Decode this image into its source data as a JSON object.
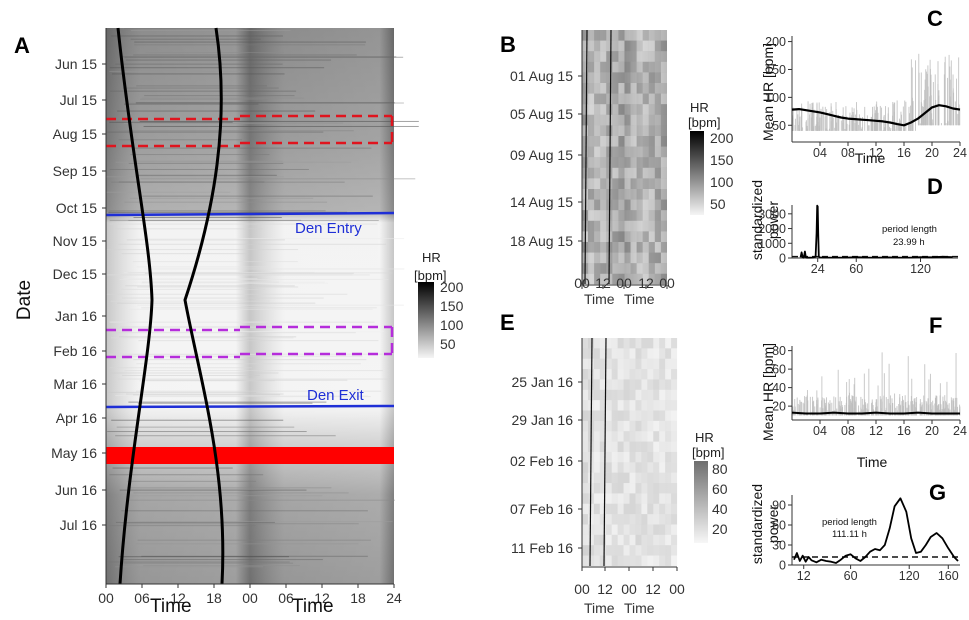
{
  "chart_data": [
    {
      "panel": "A",
      "type": "heatmap",
      "xlabel": "Time",
      "ylabel": "Date",
      "x_ticks": [
        "00",
        "06",
        "12",
        "18",
        "00",
        "06",
        "12",
        "18",
        "24"
      ],
      "y_ticks": [
        "Jun 15",
        "Jul 15",
        "Aug 15",
        "Sep 15",
        "Oct 15",
        "Nov 15",
        "Dec 15",
        "Jan 16",
        "Feb 16",
        "Mar 16",
        "Apr 16",
        "May 16",
        "Jun 16",
        "Jul 16"
      ],
      "legend": {
        "title_line1": "HR",
        "title_line2": "[bpm]",
        "ticks": [
          200,
          150,
          100,
          50
        ]
      },
      "annotations": {
        "den_entry": "Den Entry",
        "den_exit": "Den Exit"
      },
      "colors": {
        "den_line": "#1f2fd6",
        "summer_box": "#e0141e",
        "winter_box": "#b52ddb",
        "band": "#ff0000"
      }
    },
    {
      "panel": "B",
      "type": "heatmap",
      "xlabel_left": "Time",
      "xlabel_right": "Time",
      "x_ticks": [
        "00",
        "12",
        "00",
        "12",
        "00"
      ],
      "y_ticks": [
        "01 Aug 15",
        "05 Aug 15",
        "09 Aug 15",
        "14 Aug 15",
        "18 Aug 15"
      ],
      "legend": {
        "title_line1": "HR",
        "title_line2": "[bpm]",
        "ticks": [
          200,
          150,
          100,
          50
        ]
      }
    },
    {
      "panel": "C",
      "type": "line",
      "xlabel": "Time",
      "ylabel": "Mean HR [bpm]",
      "x_ticks": [
        "04",
        "08",
        "12",
        "16",
        "20",
        "24"
      ],
      "xlim": [
        0,
        24
      ],
      "ylim": [
        20,
        210
      ],
      "y_ticks": [
        50,
        100,
        150,
        200
      ],
      "x": [
        0,
        1,
        2,
        3,
        4,
        5,
        6,
        7,
        8,
        9,
        10,
        11,
        12,
        13,
        14,
        15,
        16,
        17,
        18,
        19,
        20,
        21,
        22,
        23,
        24
      ],
      "y": [
        78,
        79,
        77,
        75,
        73,
        70,
        67,
        64,
        62,
        61,
        60,
        59,
        58,
        57,
        55,
        52,
        50,
        55,
        62,
        72,
        82,
        86,
        84,
        80,
        78
      ]
    },
    {
      "panel": "D",
      "type": "line",
      "ylabel": "standardized power",
      "x_ticks": [
        24,
        60,
        120
      ],
      "xlim": [
        0,
        155
      ],
      "ylim": [
        0,
        3600
      ],
      "y_ticks": [
        0,
        1000,
        2000,
        3000
      ],
      "annotation": {
        "line1": "period length",
        "line2": "23.99 h"
      },
      "x": [
        8,
        9,
        10,
        11,
        12,
        13,
        14,
        15,
        16,
        20,
        22,
        23,
        23.5,
        24,
        24.5,
        25,
        26,
        30,
        40,
        50,
        60,
        70,
        80,
        90,
        100,
        110,
        120,
        130,
        140,
        150
      ],
      "y": [
        50,
        380,
        40,
        20,
        440,
        30,
        20,
        30,
        20,
        30,
        100,
        1700,
        3550,
        3500,
        1700,
        100,
        40,
        30,
        25,
        30,
        60,
        35,
        30,
        40,
        30,
        30,
        60,
        50,
        80,
        60
      ],
      "threshold": 100
    },
    {
      "panel": "E",
      "type": "heatmap",
      "xlabel_left": "Time",
      "xlabel_right": "Time",
      "x_ticks": [
        "00",
        "12",
        "00",
        "12",
        "00"
      ],
      "y_ticks": [
        "25 Jan 16",
        "29 Jan 16",
        "02 Feb 16",
        "07 Feb 16",
        "11 Feb 16"
      ],
      "legend": {
        "title_line1": "HR",
        "title_line2": "[bpm]",
        "ticks": [
          80,
          60,
          40,
          20
        ]
      }
    },
    {
      "panel": "F",
      "type": "line",
      "xlabel": "Time",
      "ylabel": "Mean HR [bpm]",
      "x_ticks": [
        "04",
        "08",
        "12",
        "16",
        "20",
        "24"
      ],
      "xlim": [
        0,
        24
      ],
      "ylim": [
        5,
        85
      ],
      "y_ticks": [
        20,
        40,
        60,
        80
      ],
      "x": [
        0,
        2,
        4,
        6,
        8,
        10,
        12,
        14,
        16,
        18,
        20,
        22,
        24
      ],
      "y": [
        13,
        12,
        12,
        13,
        12,
        12,
        13,
        12,
        12,
        13,
        12,
        12,
        12
      ]
    },
    {
      "panel": "G",
      "type": "line",
      "ylabel": "standardized power",
      "x_ticks": [
        12,
        60,
        120,
        160
      ],
      "xlim": [
        0,
        172
      ],
      "ylim": [
        0,
        105
      ],
      "y_ticks": [
        0,
        30,
        60,
        90
      ],
      "annotation": {
        "line1": "period length",
        "line2": "111.11 h"
      },
      "x": [
        2,
        5,
        8,
        11,
        14,
        17,
        20,
        25,
        30,
        35,
        40,
        45,
        50,
        55,
        60,
        65,
        70,
        75,
        80,
        85,
        90,
        95,
        100,
        105,
        111,
        117,
        122,
        127,
        132,
        137,
        142,
        148,
        154,
        160,
        166,
        170
      ],
      "y": [
        8,
        18,
        6,
        14,
        5,
        12,
        7,
        4,
        8,
        6,
        5,
        3,
        8,
        14,
        16,
        10,
        6,
        12,
        20,
        24,
        22,
        30,
        55,
        88,
        100,
        80,
        40,
        18,
        20,
        30,
        42,
        48,
        40,
        25,
        12,
        6
      ],
      "threshold": 12
    }
  ],
  "panel_labels": [
    "A",
    "B",
    "C",
    "D",
    "E",
    "F",
    "G"
  ]
}
